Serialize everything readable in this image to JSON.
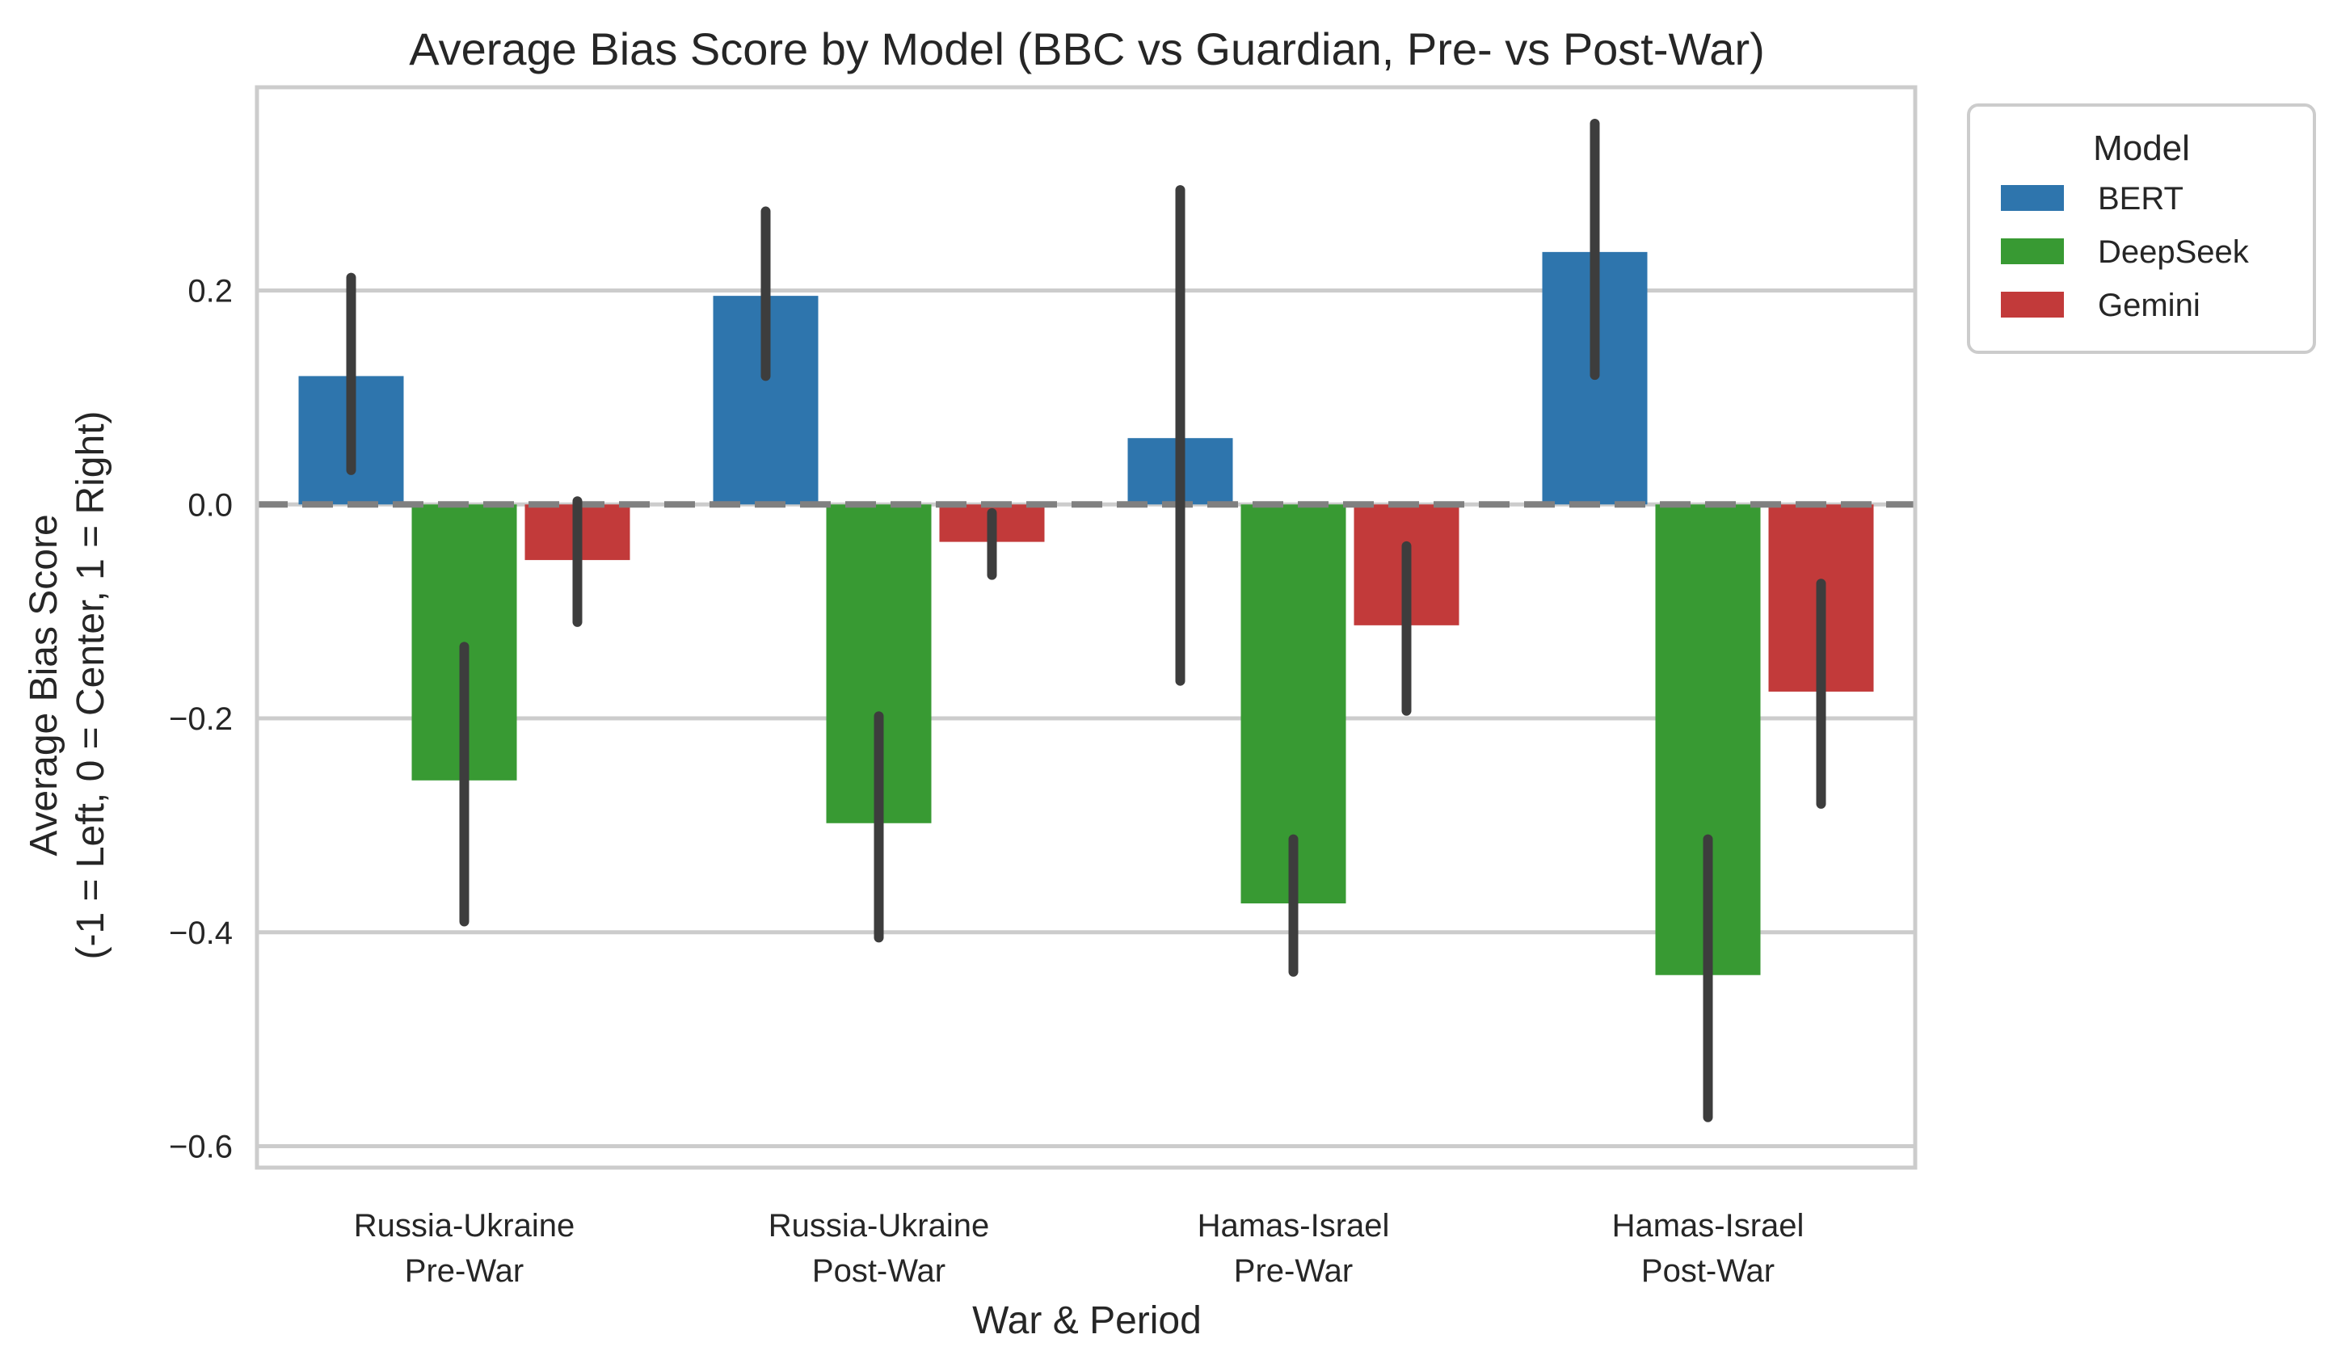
{
  "chart_data": {
    "type": "bar",
    "title": "Average Bias Score by Model (BBC vs Guardian, Pre- vs Post-War)",
    "xlabel": "War & Period",
    "ylabel_line1": "Average Bias Score",
    "ylabel_line2": "(-1 = Left, 0 = Center, 1 = Right)",
    "ylim": [
      -0.62,
      0.39
    ],
    "yticks": [
      -0.6,
      -0.4,
      -0.2,
      0.0,
      0.2
    ],
    "ytick_labels": [
      "−0.6",
      "−0.4",
      "−0.2",
      "0.0",
      "0.2"
    ],
    "categories": [
      [
        "Russia-Ukraine",
        "Pre-War"
      ],
      [
        "Russia-Ukraine",
        "Post-War"
      ],
      [
        "Hamas-Israel",
        "Pre-War"
      ],
      [
        "Hamas-Israel",
        "Post-War"
      ]
    ],
    "legend_title": "Model",
    "legend_position": "outside upper-right",
    "grid": true,
    "reference_line": 0.0,
    "series": [
      {
        "name": "BERT",
        "color": "#2e75ad",
        "values": [
          0.12,
          0.195,
          0.062,
          0.236
        ],
        "ci": [
          [
            0.032,
            0.212
          ],
          [
            0.12,
            0.274
          ],
          [
            -0.165,
            0.294
          ],
          [
            0.121,
            0.356
          ]
        ]
      },
      {
        "name": "DeepSeek",
        "color": "#389a33",
        "values": [
          -0.258,
          -0.298,
          -0.373,
          -0.44
        ],
        "ci": [
          [
            -0.39,
            -0.133
          ],
          [
            -0.405,
            -0.198
          ],
          [
            -0.437,
            -0.313
          ],
          [
            -0.573,
            -0.313
          ]
        ]
      },
      {
        "name": "Gemini",
        "color": "#c23a3a",
        "values": [
          -0.052,
          -0.035,
          -0.113,
          -0.175
        ],
        "ci": [
          [
            -0.11,
            0.003
          ],
          [
            -0.066,
            -0.008
          ],
          [
            -0.193,
            -0.039
          ],
          [
            -0.28,
            -0.074
          ]
        ]
      }
    ]
  }
}
